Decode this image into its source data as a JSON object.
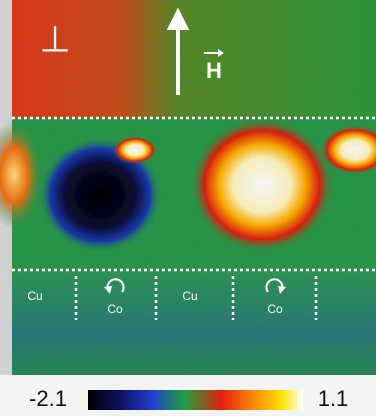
{
  "image": {
    "perpendicular_symbol": "⊥",
    "field_label": "H",
    "regions": [
      {
        "label": "Cu"
      },
      {
        "label": "Co"
      },
      {
        "label": "Cu"
      },
      {
        "label": "Co"
      }
    ]
  },
  "colorbar": {
    "min": -2.1,
    "max": 1.1
  }
}
